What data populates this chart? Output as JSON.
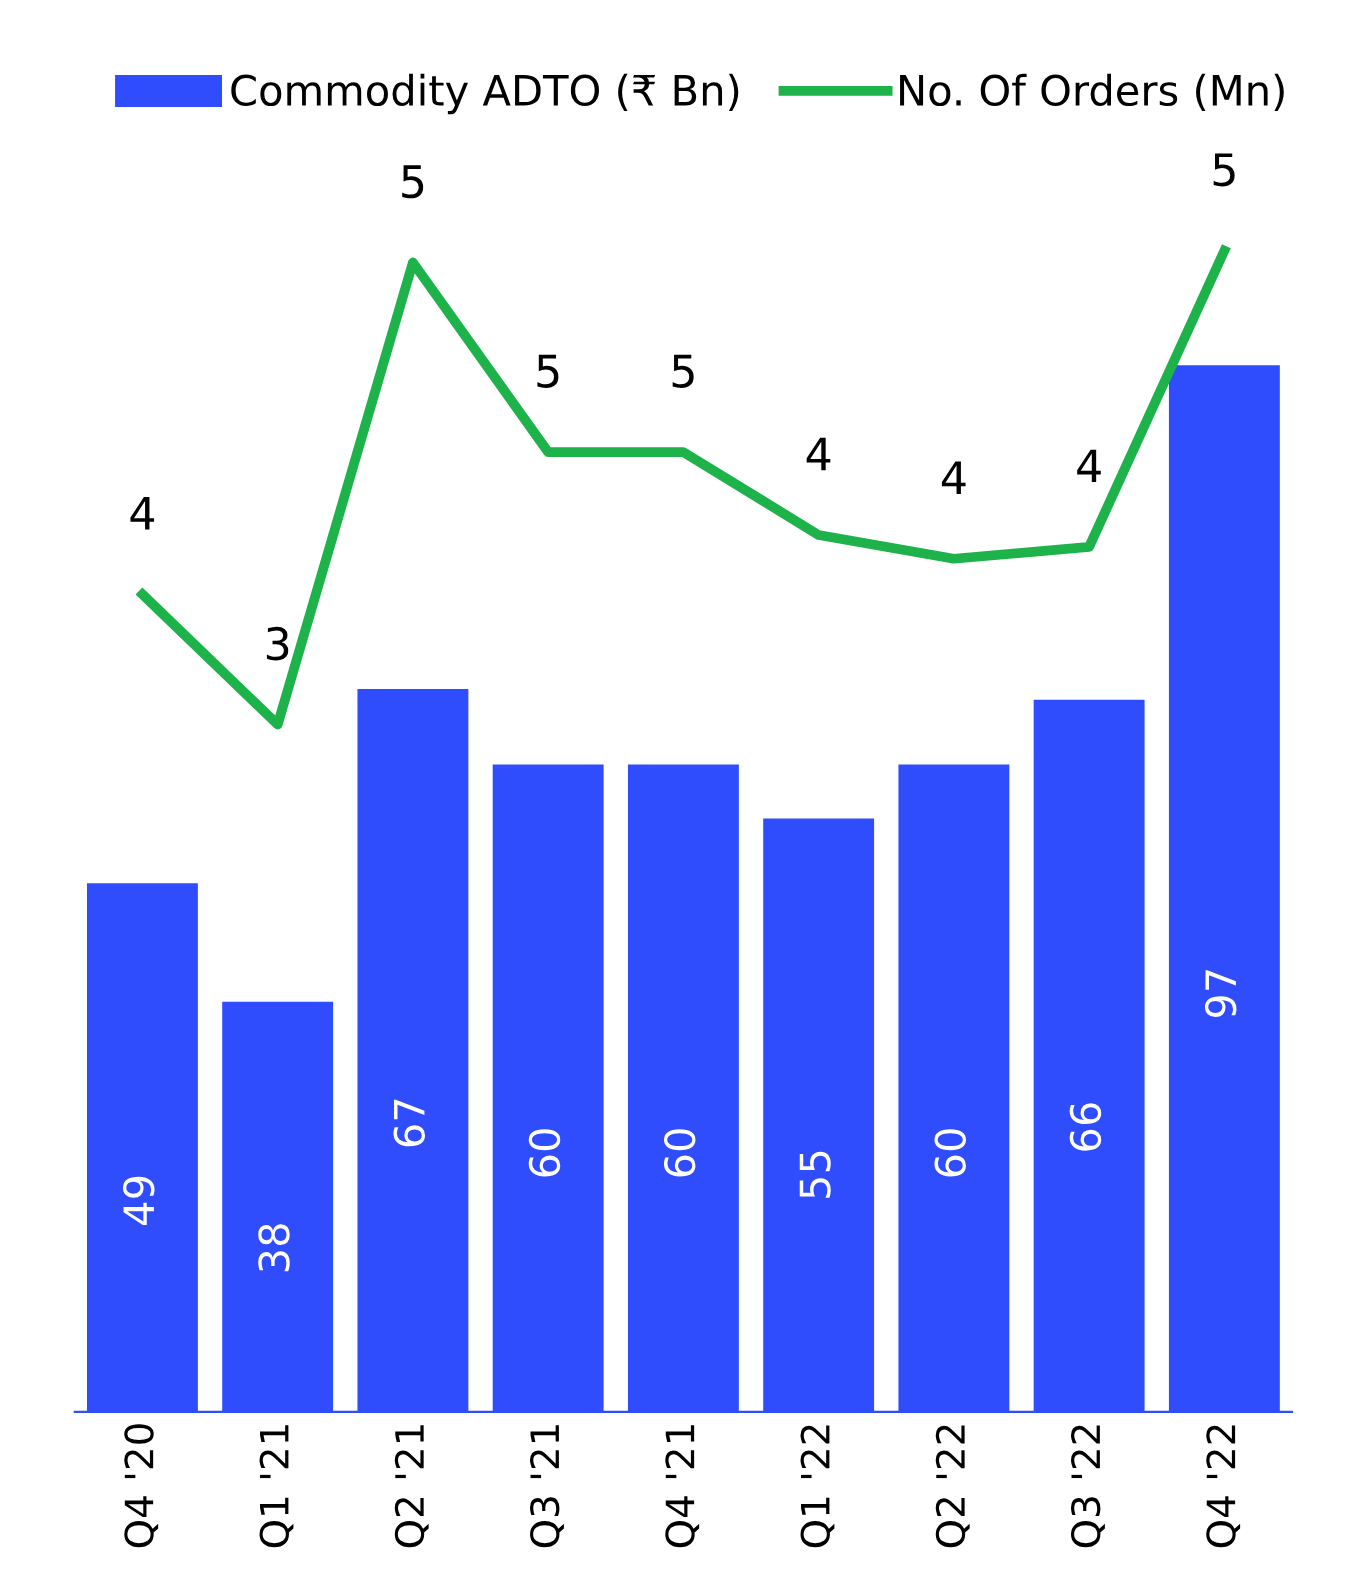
{
  "chart_data": {
    "type": "bar",
    "categories": [
      "Q4 '20",
      "Q1 '21",
      "Q2 '21",
      "Q3 '21",
      "Q4 '21",
      "Q1 '22",
      "Q2 '22",
      "Q3 '22",
      "Q4 '22"
    ],
    "series": [
      {
        "name": "Commodity ADTO (₹ Bn)",
        "color": "#2f4dfc",
        "values": [
          49,
          38,
          67,
          60,
          60,
          55,
          60,
          66,
          97
        ]
      },
      {
        "name": "No. Of Orders (Mn)",
        "color": "#1db34a",
        "type": "line",
        "axis": "y2",
        "values": [
          4.0,
          3.45,
          5.4,
          4.6,
          4.6,
          4.25,
          4.15,
          4.2,
          5.45
        ],
        "value_labels": [
          "4",
          "3",
          "5",
          "5",
          "5",
          "4",
          "4",
          "4",
          "5"
        ]
      }
    ],
    "data_labels": true,
    "tick_labels": "x",
    "legend": "top left",
    "grid": false,
    "marker": "none",
    "line_style": "solid"
  }
}
